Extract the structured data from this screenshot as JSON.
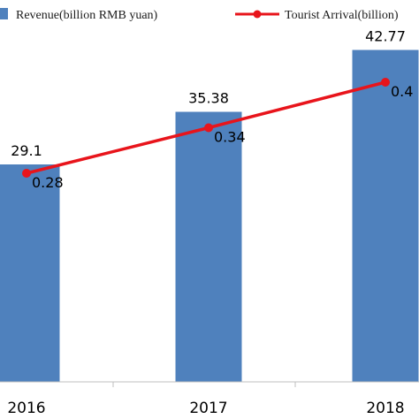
{
  "chart_data": {
    "type": "bar",
    "categories": [
      "2016",
      "2017",
      "2018"
    ],
    "series": [
      {
        "name": "Revenue(billion RMB yuan)",
        "kind": "bar",
        "values": [
          29.1,
          35.38,
          42.77
        ],
        "labels": [
          "29.1",
          "35.38",
          "42.77"
        ],
        "color": "#4f81bd"
      },
      {
        "name": "Tourist Arrival(billion)",
        "kind": "line",
        "values": [
          0.28,
          0.34,
          0.4
        ],
        "labels": [
          "0.28",
          "0.34",
          "0.4"
        ],
        "color": "#e8141b"
      }
    ],
    "ylim_bars": [
      0,
      50
    ],
    "ylim_line": [
      0,
      0.5
    ],
    "grid": false,
    "legend_position": "top"
  }
}
